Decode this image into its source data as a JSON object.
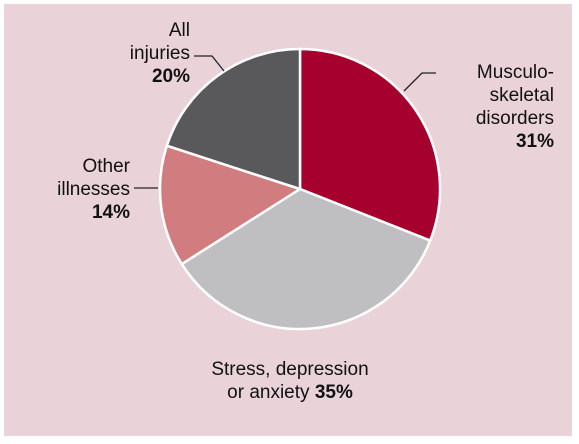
{
  "chart_data": {
    "type": "pie",
    "title": "",
    "start_angle_deg": 0,
    "direction": "clockwise",
    "slices": [
      {
        "name": "Musculo-skeletal disorders",
        "value": 31,
        "label_lines": [
          "Musculo-",
          "skeletal",
          "disorders"
        ],
        "value_label": "31%",
        "color": "#a6002e"
      },
      {
        "name": "Stress, depression or anxiety",
        "value": 35,
        "label_lines": [
          "Stress, depression",
          "or anxiety"
        ],
        "value_label": "35%",
        "color": "#bfbfc1"
      },
      {
        "name": "Other illnesses",
        "value": 14,
        "label_lines": [
          "Other",
          "illnesses"
        ],
        "value_label": "14%",
        "color": "#d17c7f"
      },
      {
        "name": "All injuries",
        "value": 20,
        "label_lines": [
          "All",
          "injuries"
        ],
        "value_label": "20%",
        "color": "#59595b"
      }
    ],
    "background_color": "#e9d3d9"
  }
}
